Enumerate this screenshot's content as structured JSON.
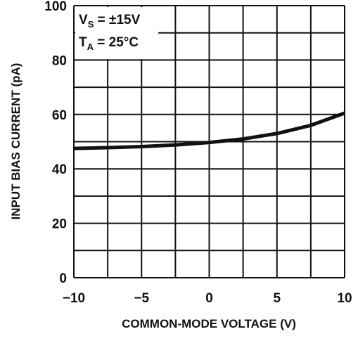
{
  "chart_data": {
    "type": "line",
    "x_label": "COMMON-MODE VOLTAGE (V)",
    "y_label": "INPUT BIAS CURRENT (pA)",
    "annotations": [
      {
        "main": "V",
        "sub": "S",
        "rest": " = ±15V"
      },
      {
        "main": "T",
        "sub": "A",
        "rest": " = 25°C"
      }
    ],
    "x": [
      -10,
      -7.5,
      -5,
      -2.5,
      0,
      2.5,
      5,
      7.5,
      10
    ],
    "series": [
      {
        "color": "#111111",
        "values": [
          47.5,
          47.8,
          48.2,
          48.8,
          49.7,
          51,
          53,
          56,
          60.5
        ]
      }
    ],
    "xlim": [
      -10,
      10
    ],
    "ylim": [
      0,
      100
    ],
    "xticks": [
      {
        "value": -10,
        "label": "−10"
      },
      {
        "value": -5,
        "label": "−5"
      },
      0,
      5,
      10
    ],
    "yticks": [
      0,
      20,
      40,
      60,
      80,
      100
    ],
    "x_grid": [
      -10,
      -7.5,
      -5,
      -2.5,
      0,
      2.5,
      5,
      7.5,
      10
    ],
    "y_grid": [
      0,
      10,
      20,
      30,
      40,
      50,
      60,
      70,
      80,
      90,
      100
    ],
    "grid": true
  }
}
